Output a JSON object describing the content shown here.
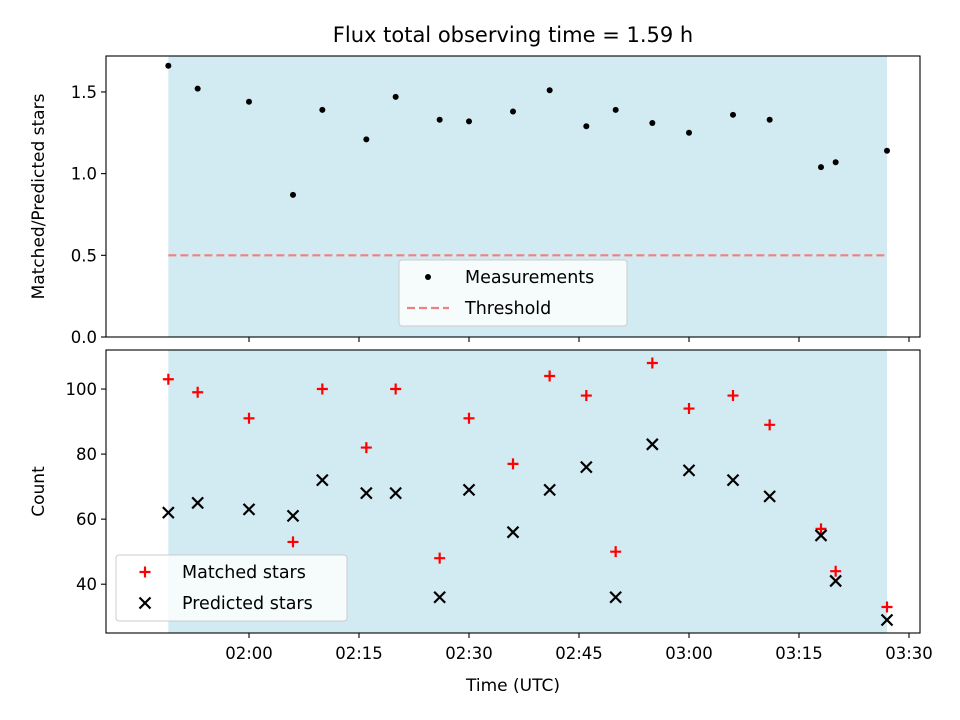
{
  "title": "Flux total observing time = 1.59 h",
  "chart_data": [
    {
      "type": "scatter",
      "ylabel": "Matched/Predicted stars",
      "xlabel": "",
      "ylim": [
        0.0,
        1.72
      ],
      "xlim": [
        "01:40:30",
        "03:31:30"
      ],
      "yticks": [
        0.0,
        0.5,
        1.0,
        1.5
      ],
      "ytick_labels": [
        "0.0",
        "0.5",
        "1.0",
        "1.5"
      ],
      "shaded_span": [
        "01:49:00",
        "03:27:00"
      ],
      "shaded_color": "#add8e6",
      "grid": false,
      "legend_position": "lower center",
      "series": [
        {
          "name": "Measurements",
          "marker": "dot",
          "color": "#000000",
          "x": [
            "01:49",
            "01:53",
            "02:00",
            "02:06",
            "02:10",
            "02:16",
            "02:20",
            "02:26",
            "02:30",
            "02:36",
            "02:41",
            "02:46",
            "02:50",
            "02:55",
            "03:00",
            "03:06",
            "03:11",
            "03:18",
            "03:20",
            "03:27"
          ],
          "y": [
            1.66,
            1.52,
            1.44,
            0.87,
            1.39,
            1.21,
            1.47,
            1.33,
            1.32,
            1.38,
            1.51,
            1.29,
            1.39,
            1.31,
            1.25,
            1.36,
            1.33,
            1.04,
            1.07,
            1.14
          ]
        },
        {
          "name": "Threshold",
          "marker": "dashed-line",
          "color": "#f08080",
          "x": [
            "01:49",
            "03:27"
          ],
          "y": [
            0.5,
            0.5
          ]
        }
      ]
    },
    {
      "type": "scatter",
      "ylabel": "Count",
      "xlabel": "Time (UTC)",
      "ylim": [
        25,
        112
      ],
      "xlim": [
        "01:40:30",
        "03:31:30"
      ],
      "yticks": [
        40,
        60,
        80,
        100
      ],
      "ytick_labels": [
        "40",
        "60",
        "80",
        "100"
      ],
      "xticks": [
        "02:00",
        "02:15",
        "02:30",
        "02:45",
        "03:00",
        "03:15",
        "03:30"
      ],
      "xtick_labels": [
        "02:00",
        "02:15",
        "02:30",
        "02:45",
        "03:00",
        "03:15",
        "03:30"
      ],
      "shaded_span": [
        "01:49:00",
        "03:27:00"
      ],
      "shaded_color": "#add8e6",
      "grid": false,
      "legend_position": "lower left",
      "series": [
        {
          "name": "Matched stars",
          "marker": "plus",
          "color": "#ff0000",
          "x": [
            "01:49",
            "01:53",
            "02:00",
            "02:06",
            "02:10",
            "02:16",
            "02:20",
            "02:26",
            "02:30",
            "02:36",
            "02:41",
            "02:46",
            "02:50",
            "02:55",
            "03:00",
            "03:06",
            "03:11",
            "03:18",
            "03:20",
            "03:27"
          ],
          "y": [
            103,
            99,
            91,
            53,
            100,
            82,
            100,
            48,
            91,
            77,
            104,
            98,
            50,
            108,
            94,
            98,
            89,
            57,
            44,
            33
          ]
        },
        {
          "name": "Predicted stars",
          "marker": "x",
          "color": "#000000",
          "x": [
            "01:49",
            "01:53",
            "02:00",
            "02:06",
            "02:10",
            "02:16",
            "02:20",
            "02:26",
            "02:30",
            "02:36",
            "02:41",
            "02:46",
            "02:50",
            "02:55",
            "03:00",
            "03:06",
            "03:11",
            "03:18",
            "03:20",
            "03:27"
          ],
          "y": [
            62,
            65,
            63,
            61,
            72,
            68,
            68,
            36,
            69,
            56,
            69,
            76,
            36,
            83,
            75,
            72,
            67,
            55,
            41,
            29
          ]
        }
      ]
    }
  ]
}
